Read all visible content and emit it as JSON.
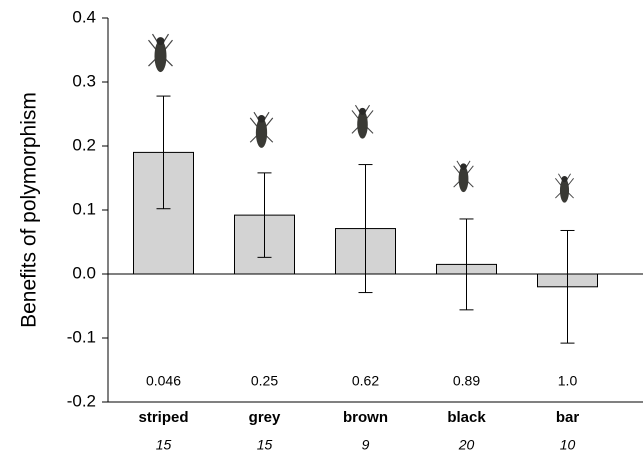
{
  "chart_data": {
    "type": "bar",
    "y_label": "Benefits of polymorphism",
    "categories": [
      "striped",
      "grey",
      "brown",
      "black",
      "bar"
    ],
    "values": [
      0.19,
      0.092,
      0.071,
      0.015,
      -0.02
    ],
    "errors": [
      0.088,
      0.066,
      0.1,
      0.071,
      0.088
    ],
    "sample_sizes": [
      15,
      15,
      9,
      20,
      10
    ],
    "p_values": [
      "0.046",
      "0.25",
      "0.62",
      "0.89",
      "1.0"
    ],
    "color": "#d3d3d3",
    "ylim": [
      -0.2,
      0.4
    ],
    "yticks": [
      -0.2,
      -0.1,
      {
        "value": 0,
        "label": "0.0"
      },
      0.1,
      0.2,
      0.3,
      0.4
    ]
  }
}
